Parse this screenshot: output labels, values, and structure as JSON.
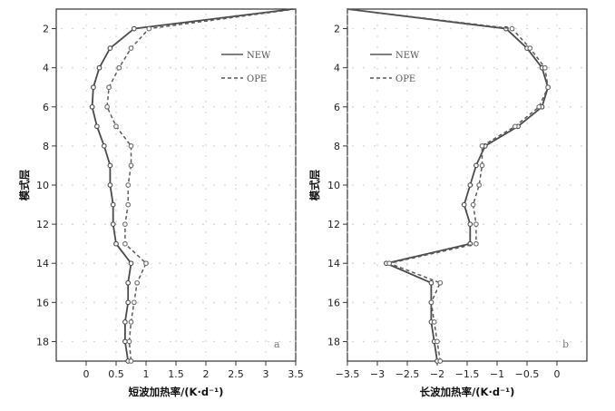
{
  "chart_data": [
    {
      "type": "line",
      "panel_label": "a",
      "xlabel": "短波加热率/(K·d⁻¹)",
      "ylabel": "模式层",
      "xlim": [
        -0.5,
        3.5
      ],
      "ylim": [
        1,
        19
      ],
      "y_inverted": true,
      "x_ticks": [
        "0",
        "0.5",
        "1",
        "1.5",
        "2",
        "2.5",
        "3",
        "3.5"
      ],
      "y_ticks": [
        "2",
        "4",
        "6",
        "8",
        "10",
        "12",
        "14",
        "16",
        "18"
      ],
      "grid": "dotted",
      "legend_position": "top-right",
      "y": [
        1,
        2,
        3,
        4,
        5,
        6,
        7,
        8,
        9,
        10,
        11,
        12,
        13,
        14,
        15,
        16,
        17,
        18,
        19
      ],
      "series": [
        {
          "name": "NEW",
          "style": "solid",
          "values": [
            3.45,
            0.8,
            0.4,
            0.22,
            0.12,
            0.1,
            0.18,
            0.3,
            0.4,
            0.4,
            0.45,
            0.45,
            0.5,
            0.75,
            0.7,
            0.7,
            0.65,
            0.65,
            0.7
          ]
        },
        {
          "name": "OPE",
          "style": "dashed",
          "values": [
            3.5,
            1.05,
            0.75,
            0.55,
            0.38,
            0.35,
            0.5,
            0.75,
            0.75,
            0.7,
            0.7,
            0.65,
            0.65,
            1.0,
            0.85,
            0.8,
            0.75,
            0.72,
            0.75
          ]
        }
      ]
    },
    {
      "type": "line",
      "panel_label": "b",
      "xlabel": "长波加热率/(K·d⁻¹)",
      "ylabel": "模式层",
      "xlim": [
        -3.5,
        0.5
      ],
      "ylim": [
        1,
        19
      ],
      "y_inverted": true,
      "x_ticks": [
        "-3.5",
        "-3",
        "-2.5",
        "-2",
        "-1.5",
        "-1",
        "-0.5",
        "0"
      ],
      "y_ticks": [
        "2",
        "4",
        "6",
        "8",
        "10",
        "12",
        "14",
        "16",
        "18"
      ],
      "grid": "dotted",
      "legend_position": "top-right",
      "y": [
        1,
        2,
        3,
        4,
        5,
        6,
        7,
        8,
        9,
        10,
        11,
        12,
        13,
        14,
        15,
        16,
        17,
        18,
        19
      ],
      "series": [
        {
          "name": "NEW",
          "style": "solid",
          "values": [
            -3.5,
            -0.85,
            -0.5,
            -0.25,
            -0.15,
            -0.25,
            -0.65,
            -1.2,
            -1.35,
            -1.45,
            -1.55,
            -1.45,
            -1.45,
            -2.85,
            -2.1,
            -2.1,
            -2.1,
            -2.05,
            -2.0
          ]
        },
        {
          "name": "OPE",
          "style": "dashed",
          "values": [
            -3.5,
            -0.75,
            -0.45,
            -0.2,
            -0.15,
            -0.3,
            -0.7,
            -1.25,
            -1.25,
            -1.3,
            -1.4,
            -1.35,
            -1.35,
            -2.8,
            -1.95,
            -2.1,
            -2.05,
            -2.0,
            -1.95
          ]
        }
      ]
    }
  ]
}
